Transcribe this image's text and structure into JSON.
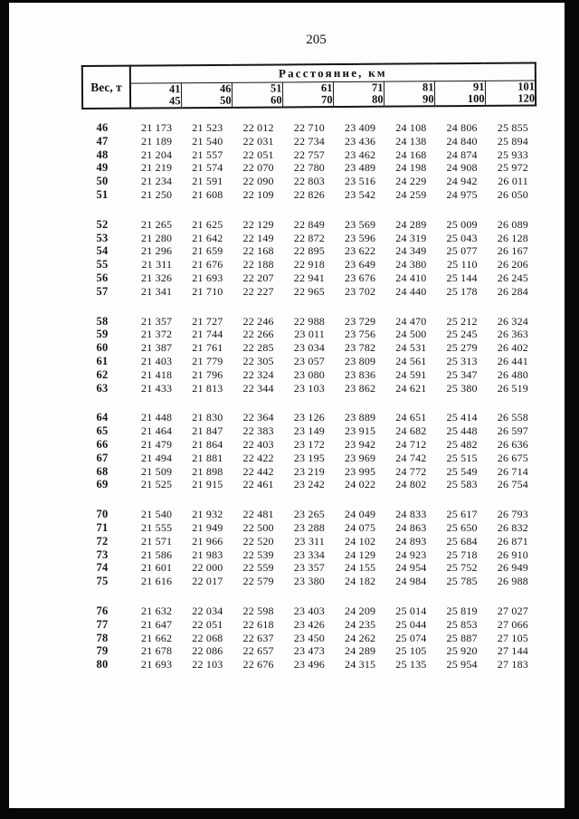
{
  "page": {
    "number": "205"
  },
  "table": {
    "weight_header": "Вес, т",
    "distance_header": "Расстояние, км",
    "distance_ranges": [
      {
        "from": "41",
        "to": "45"
      },
      {
        "from": "46",
        "to": "50"
      },
      {
        "from": "51",
        "to": "60"
      },
      {
        "from": "61",
        "to": "70"
      },
      {
        "from": "71",
        "to": "80"
      },
      {
        "from": "81",
        "to": "90"
      },
      {
        "from": "91",
        "to": "100"
      },
      {
        "from": "101",
        "to": "120"
      }
    ],
    "blocks": [
      {
        "rows": [
          {
            "weight": "46",
            "values": [
              "21 173",
              "21 523",
              "22 012",
              "22 710",
              "23 409",
              "24 108",
              "24 806",
              "25 855"
            ]
          },
          {
            "weight": "47",
            "values": [
              "21 189",
              "21 540",
              "22 031",
              "22 734",
              "23 436",
              "24 138",
              "24 840",
              "25 894"
            ]
          },
          {
            "weight": "48",
            "values": [
              "21 204",
              "21 557",
              "22 051",
              "22 757",
              "23 462",
              "24 168",
              "24 874",
              "25 933"
            ]
          },
          {
            "weight": "49",
            "values": [
              "21 219",
              "21 574",
              "22 070",
              "22 780",
              "23 489",
              "24 198",
              "24 908",
              "25 972"
            ]
          },
          {
            "weight": "50",
            "values": [
              "21 234",
              "21 591",
              "22 090",
              "22 803",
              "23 516",
              "24 229",
              "24 942",
              "26 011"
            ]
          },
          {
            "weight": "51",
            "values": [
              "21 250",
              "21 608",
              "22 109",
              "22 826",
              "23 542",
              "24 259",
              "24 975",
              "26 050"
            ]
          }
        ]
      },
      {
        "rows": [
          {
            "weight": "52",
            "values": [
              "21 265",
              "21 625",
              "22 129",
              "22 849",
              "23 569",
              "24 289",
              "25 009",
              "26 089"
            ]
          },
          {
            "weight": "53",
            "values": [
              "21 280",
              "21 642",
              "22 149",
              "22 872",
              "23 596",
              "24 319",
              "25 043",
              "26 128"
            ]
          },
          {
            "weight": "54",
            "values": [
              "21 296",
              "21 659",
              "22 168",
              "22 895",
              "23 622",
              "24 349",
              "25 077",
              "26 167"
            ]
          },
          {
            "weight": "55",
            "values": [
              "21 311",
              "21 676",
              "22 188",
              "22 918",
              "23 649",
              "24 380",
              "25 110",
              "26 206"
            ]
          },
          {
            "weight": "56",
            "values": [
              "21 326",
              "21 693",
              "22 207",
              "22 941",
              "23 676",
              "24 410",
              "25 144",
              "26 245"
            ]
          },
          {
            "weight": "57",
            "values": [
              "21 341",
              "21 710",
              "22 227",
              "22 965",
              "23 702",
              "24 440",
              "25 178",
              "26 284"
            ]
          }
        ]
      },
      {
        "rows": [
          {
            "weight": "58",
            "values": [
              "21 357",
              "21 727",
              "22 246",
              "22 988",
              "23 729",
              "24 470",
              "25 212",
              "26 324"
            ]
          },
          {
            "weight": "59",
            "values": [
              "21 372",
              "21 744",
              "22 266",
              "23 011",
              "23 756",
              "24 500",
              "25 245",
              "26 363"
            ]
          },
          {
            "weight": "60",
            "values": [
              "21 387",
              "21 761",
              "22 285",
              "23 034",
              "23 782",
              "24 531",
              "25 279",
              "26 402"
            ]
          },
          {
            "weight": "61",
            "values": [
              "21 403",
              "21 779",
              "22 305",
              "23 057",
              "23 809",
              "24 561",
              "25 313",
              "26 441"
            ]
          },
          {
            "weight": "62",
            "values": [
              "21 418",
              "21 796",
              "22 324",
              "23 080",
              "23 836",
              "24 591",
              "25 347",
              "26 480"
            ]
          },
          {
            "weight": "63",
            "values": [
              "21 433",
              "21 813",
              "22 344",
              "23 103",
              "23 862",
              "24 621",
              "25 380",
              "26 519"
            ]
          }
        ]
      },
      {
        "rows": [
          {
            "weight": "64",
            "values": [
              "21 448",
              "21 830",
              "22 364",
              "23 126",
              "23 889",
              "24 651",
              "25 414",
              "26 558"
            ]
          },
          {
            "weight": "65",
            "values": [
              "21 464",
              "21 847",
              "22 383",
              "23 149",
              "23 915",
              "24 682",
              "25 448",
              "26 597"
            ]
          },
          {
            "weight": "66",
            "values": [
              "21 479",
              "21 864",
              "22 403",
              "23 172",
              "23 942",
              "24 712",
              "25 482",
              "26 636"
            ]
          },
          {
            "weight": "67",
            "values": [
              "21 494",
              "21 881",
              "22 422",
              "23 195",
              "23 969",
              "24 742",
              "25 515",
              "26 675"
            ]
          },
          {
            "weight": "68",
            "values": [
              "21 509",
              "21 898",
              "22 442",
              "23 219",
              "23 995",
              "24 772",
              "25 549",
              "26 714"
            ]
          },
          {
            "weight": "69",
            "values": [
              "21 525",
              "21 915",
              "22 461",
              "23 242",
              "24 022",
              "24 802",
              "25 583",
              "26 754"
            ]
          }
        ]
      },
      {
        "rows": [
          {
            "weight": "70",
            "values": [
              "21 540",
              "21 932",
              "22 481",
              "23 265",
              "24 049",
              "24 833",
              "25 617",
              "26 793"
            ]
          },
          {
            "weight": "71",
            "values": [
              "21 555",
              "21 949",
              "22 500",
              "23 288",
              "24 075",
              "24 863",
              "25 650",
              "26 832"
            ]
          },
          {
            "weight": "72",
            "values": [
              "21 571",
              "21 966",
              "22 520",
              "23 311",
              "24 102",
              "24 893",
              "25 684",
              "26 871"
            ]
          },
          {
            "weight": "73",
            "values": [
              "21 586",
              "21 983",
              "22 539",
              "23 334",
              "24 129",
              "24 923",
              "25 718",
              "26 910"
            ]
          },
          {
            "weight": "74",
            "values": [
              "21 601",
              "22 000",
              "22 559",
              "23 357",
              "24 155",
              "24 954",
              "25 752",
              "26 949"
            ]
          },
          {
            "weight": "75",
            "values": [
              "21 616",
              "22 017",
              "22 579",
              "23 380",
              "24 182",
              "24 984",
              "25 785",
              "26 988"
            ]
          }
        ]
      },
      {
        "rows": [
          {
            "weight": "76",
            "values": [
              "21 632",
              "22 034",
              "22 598",
              "23 403",
              "24 209",
              "25 014",
              "25 819",
              "27 027"
            ]
          },
          {
            "weight": "77",
            "values": [
              "21 647",
              "22 051",
              "22 618",
              "23 426",
              "24 235",
              "25 044",
              "25 853",
              "27 066"
            ]
          },
          {
            "weight": "78",
            "values": [
              "21 662",
              "22 068",
              "22 637",
              "23 450",
              "24 262",
              "25 074",
              "25 887",
              "27 105"
            ]
          },
          {
            "weight": "79",
            "values": [
              "21 678",
              "22 086",
              "22 657",
              "23 473",
              "24 289",
              "25 105",
              "25 920",
              "27 144"
            ]
          },
          {
            "weight": "80",
            "values": [
              "21 693",
              "22 103",
              "22 676",
              "23 496",
              "24 315",
              "25 135",
              "25 954",
              "27 183"
            ]
          }
        ]
      }
    ]
  }
}
